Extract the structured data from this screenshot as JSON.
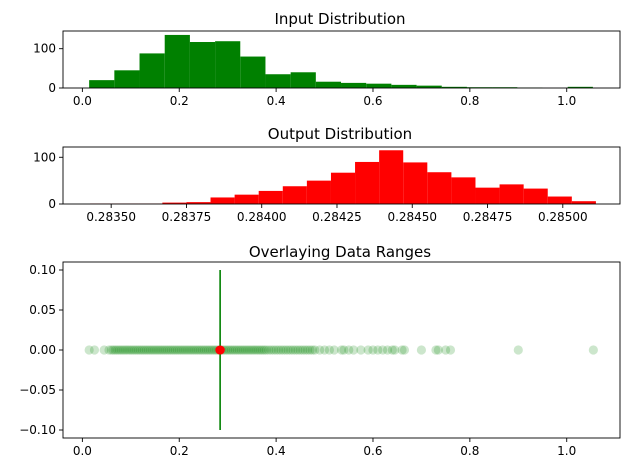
{
  "chart_data": [
    {
      "type": "bar",
      "title": "Input Distribution",
      "xlabel": "",
      "ylabel": "",
      "xlim": [
        -0.04,
        1.11
      ],
      "ylim": [
        0,
        145
      ],
      "xticks": [
        0.0,
        0.2,
        0.4,
        0.6,
        0.8,
        1.0
      ],
      "xtick_labels": [
        "0.0",
        "0.2",
        "0.4",
        "0.6",
        "0.8",
        "1.0"
      ],
      "yticks": [
        0,
        100
      ],
      "ytick_labels": [
        "0",
        "100"
      ],
      "bin_edges": [
        0.014,
        0.066,
        0.118,
        0.17,
        0.222,
        0.274,
        0.326,
        0.378,
        0.43,
        0.482,
        0.534,
        0.586,
        0.638,
        0.69,
        0.742,
        0.794,
        0.846,
        0.898,
        0.95,
        1.002,
        1.054
      ],
      "counts": [
        20,
        45,
        88,
        135,
        117,
        119,
        80,
        35,
        40,
        16,
        13,
        11,
        8,
        6,
        3,
        2,
        2,
        1,
        0,
        3
      ],
      "color": "#008000"
    },
    {
      "type": "bar",
      "title": "Output Distribution",
      "xlabel": "",
      "ylabel": "",
      "xlim": [
        0.28334,
        0.28519
      ],
      "ylim": [
        0,
        122
      ],
      "xticks": [
        0.2835,
        0.28375,
        0.284,
        0.28425,
        0.2845,
        0.28475,
        0.285
      ],
      "xtick_labels": [
        "0.28350",
        "0.28375",
        "0.28400",
        "0.28425",
        "0.28450",
        "0.28475",
        "0.28500"
      ],
      "yticks": [
        0,
        100
      ],
      "ytick_labels": [
        "0",
        "100"
      ],
      "bin_edges": [
        0.28343,
        0.28351,
        0.28359,
        0.28367,
        0.28375,
        0.28383,
        0.28391,
        0.28399,
        0.28407,
        0.28415,
        0.28423,
        0.28431,
        0.28439,
        0.28447,
        0.28455,
        0.28463,
        0.28471,
        0.28479,
        0.28487,
        0.28495,
        0.28503,
        0.28511
      ],
      "counts": [
        1,
        1,
        1,
        3,
        4,
        14,
        20,
        28,
        38,
        50,
        67,
        90,
        115,
        89,
        68,
        57,
        35,
        42,
        33,
        16,
        6
      ],
      "color": "#ff0000"
    },
    {
      "type": "scatter",
      "title": "Overlaying Data Ranges",
      "xlabel": "",
      "ylabel": "",
      "xlim": [
        -0.04,
        1.11
      ],
      "ylim": [
        -0.11,
        0.11
      ],
      "xticks": [
        0.0,
        0.2,
        0.4,
        0.6,
        0.8,
        1.0
      ],
      "xtick_labels": [
        "0.0",
        "0.2",
        "0.4",
        "0.6",
        "0.8",
        "1.0"
      ],
      "yticks": [
        -0.1,
        -0.05,
        0.0,
        0.05,
        0.1
      ],
      "ytick_labels": [
        "−0.10",
        "−0.05",
        "0.00",
        "0.05",
        "0.10"
      ],
      "series": [
        {
          "color": "#008000",
          "alpha": 0.2,
          "y": 0.0,
          "x": [
            0.014,
            0.025,
            0.045,
            0.055,
            0.06,
            0.064,
            0.068,
            0.072,
            0.076,
            0.08,
            0.084,
            0.088,
            0.092,
            0.096,
            0.1,
            0.104,
            0.108,
            0.112,
            0.116,
            0.12,
            0.124,
            0.128,
            0.132,
            0.136,
            0.14,
            0.144,
            0.148,
            0.152,
            0.156,
            0.16,
            0.164,
            0.168,
            0.172,
            0.176,
            0.18,
            0.184,
            0.188,
            0.192,
            0.196,
            0.2,
            0.204,
            0.208,
            0.212,
            0.216,
            0.22,
            0.224,
            0.228,
            0.232,
            0.236,
            0.24,
            0.244,
            0.248,
            0.252,
            0.256,
            0.26,
            0.264,
            0.268,
            0.272,
            0.276,
            0.28,
            0.284,
            0.288,
            0.292,
            0.296,
            0.3,
            0.304,
            0.308,
            0.312,
            0.316,
            0.32,
            0.324,
            0.328,
            0.332,
            0.336,
            0.34,
            0.344,
            0.348,
            0.352,
            0.356,
            0.36,
            0.364,
            0.368,
            0.372,
            0.376,
            0.38,
            0.385,
            0.39,
            0.395,
            0.4,
            0.405,
            0.41,
            0.415,
            0.42,
            0.425,
            0.43,
            0.435,
            0.44,
            0.445,
            0.45,
            0.455,
            0.46,
            0.465,
            0.47,
            0.475,
            0.48,
            0.49,
            0.5,
            0.51,
            0.52,
            0.535,
            0.54,
            0.55,
            0.56,
            0.575,
            0.59,
            0.6,
            0.61,
            0.62,
            0.63,
            0.64,
            0.645,
            0.66,
            0.665,
            0.7,
            0.73,
            0.735,
            0.75,
            0.76,
            0.9,
            1.055
          ]
        },
        {
          "color": "#ff0000",
          "y": 0.0,
          "x": [
            0.2835,
            0.2844,
            0.2851
          ]
        }
      ],
      "vertical_line": {
        "x": 0.2844,
        "ymin": -0.1,
        "ymax": 0.1,
        "color": "#008000"
      }
    }
  ]
}
